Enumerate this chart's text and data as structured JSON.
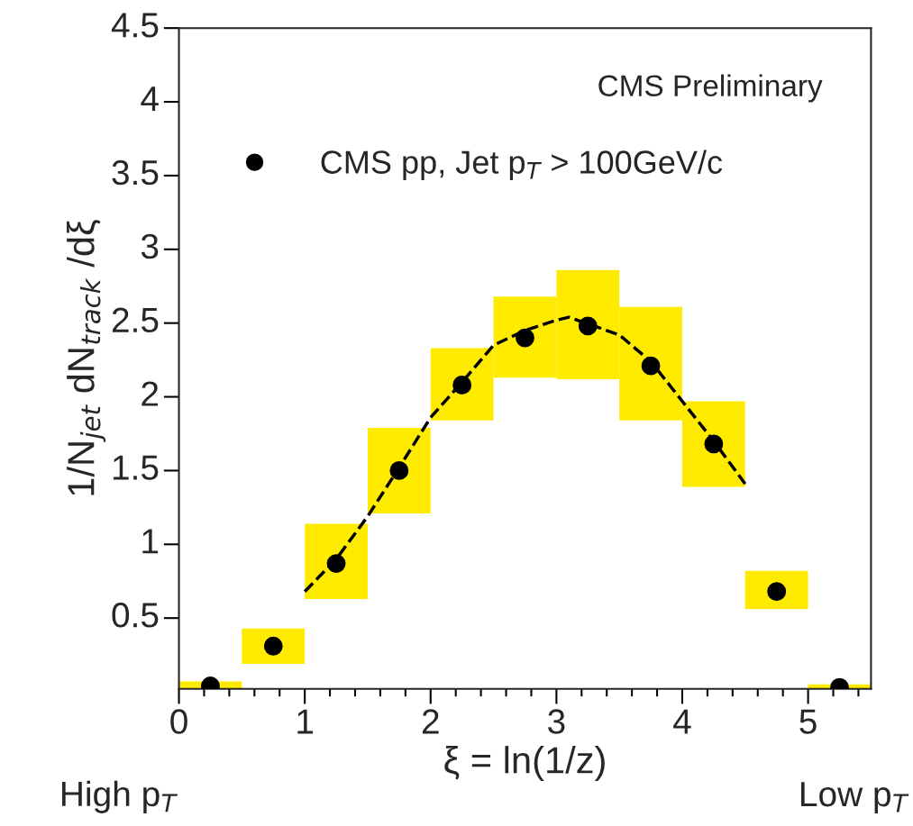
{
  "chart_data": {
    "type": "scatter",
    "xlabel": "ξ = ln(1/z)",
    "ylabel": "1/N$_{jet}$ dN$_{track}$ /dξ",
    "annotations": [
      "CMS Preliminary",
      "High p$_{T}$",
      "Low p$_{T}$"
    ],
    "series": [
      {
        "type": "bar",
        "color": "#ffeb00",
        "x": [
          0.25,
          0.75,
          1.25,
          1.75,
          2.25,
          2.75,
          3.25,
          3.75,
          4.25,
          4.75,
          5.25
        ],
        "base": [
          0.02,
          0.19,
          0.63,
          1.21,
          1.84,
          2.13,
          2.12,
          1.84,
          1.39,
          0.56,
          0.02
        ],
        "values": [
          0.05,
          0.24,
          0.51,
          0.58,
          0.49,
          0.55,
          0.74,
          0.77,
          0.58,
          0.26,
          0.03
        ]
      },
      {
        "type": "line",
        "color": "#000000",
        "line_style": "dashed",
        "marker": "none",
        "x": [
          1.0,
          1.25,
          1.5,
          1.75,
          2.0,
          2.25,
          2.5,
          2.75,
          3.0,
          3.1,
          3.5,
          3.75,
          4.0,
          4.25,
          4.5
        ],
        "values": [
          0.68,
          0.9,
          1.19,
          1.52,
          1.86,
          2.1,
          2.35,
          2.45,
          2.52,
          2.54,
          2.42,
          2.24,
          1.97,
          1.7,
          1.41
        ]
      },
      {
        "name": "CMS pp, Jet p$_{T}$ > 100GeV/c",
        "color": "#000000",
        "marker": "circle",
        "x": [
          0.25,
          0.75,
          1.25,
          1.75,
          2.25,
          2.75,
          3.25,
          3.75,
          4.25,
          4.75,
          5.25
        ],
        "values": [
          0.04,
          0.31,
          0.87,
          1.5,
          2.08,
          2.4,
          2.48,
          2.21,
          1.68,
          0.68,
          0.03
        ]
      }
    ],
    "xlim": [
      0,
      5.5
    ],
    "xticks": [
      0,
      1,
      2,
      3,
      4,
      5
    ],
    "ylim": [
      0.02,
      4.5
    ],
    "yticks": [
      0.5,
      1,
      1.5,
      2,
      2.5,
      3,
      3.5,
      4,
      4.5
    ],
    "grid": false,
    "legend": "top left"
  }
}
